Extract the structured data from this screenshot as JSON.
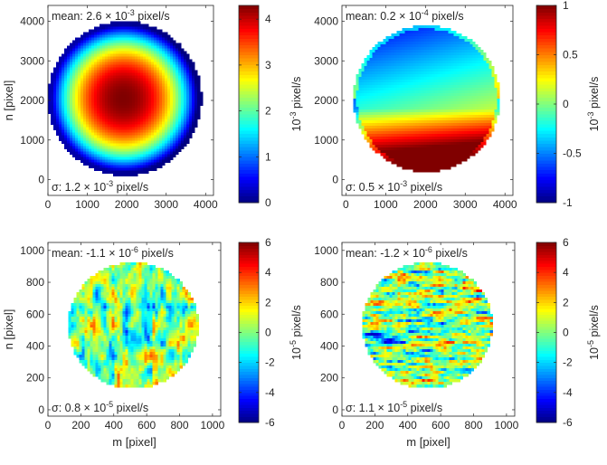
{
  "colormap": "jet",
  "chart_data": [
    {
      "type": "heatmap",
      "title": "",
      "xlabel": "",
      "ylabel": "n [pixel]",
      "xlim": [
        0,
        4200
      ],
      "ylim": [
        -400,
        4400
      ],
      "xticks": [
        "0",
        "1000",
        "2000",
        "3000",
        "4000"
      ],
      "yticks": [
        "0",
        "1000",
        "2000",
        "3000",
        "4000"
      ],
      "field": "radial",
      "circle": {
        "cx": 1950,
        "cy": 2050,
        "r": 1950
      },
      "mean_label": {
        "prefix": "mean: 2.6 × 10",
        "exp": "-3",
        "suffix": " pixel/s"
      },
      "sigma_label": {
        "prefix": "σ: 1.2 × 10",
        "exp": "-3",
        "suffix": " pixel/s"
      },
      "colorbar": {
        "range": [
          0,
          4.3
        ],
        "ticks": [
          "0",
          "1",
          "2",
          "3",
          "4"
        ],
        "label_prefix": "10",
        "label_exp": "-3",
        "label_suffix": " pixel/s"
      }
    },
    {
      "type": "heatmap",
      "title": "",
      "xlabel": "",
      "ylabel": "",
      "xlim": [
        -100,
        4200
      ],
      "ylim": [
        -400,
        4400
      ],
      "xticks": [
        "0",
        "1000",
        "2000",
        "3000",
        "4000"
      ],
      "yticks": [
        "0",
        "1000",
        "2000",
        "3000",
        "4000"
      ],
      "field": "tilt",
      "circle": {
        "cx": 2030,
        "cy": 2050,
        "r": 1850
      },
      "mean_label": {
        "prefix": "mean: 0.2 × 10",
        "exp": "-4",
        "suffix": " pixel/s"
      },
      "sigma_label": {
        "prefix": "σ: 0.5 × 10",
        "exp": "-3",
        "suffix": " pixel/s"
      },
      "colorbar": {
        "range": [
          -1,
          1
        ],
        "ticks": [
          "-1",
          "-0.5",
          "0",
          "0.5",
          "1"
        ],
        "label_prefix": "10",
        "label_exp": "-3",
        "label_suffix": " pixel/s"
      }
    },
    {
      "type": "heatmap",
      "title": "",
      "xlabel": "m [pixel]",
      "ylabel": "n [pixel]",
      "xlim": [
        0,
        1050
      ],
      "ylim": [
        -40,
        1050
      ],
      "xticks": [
        "0",
        "200",
        "400",
        "600",
        "800",
        "1000"
      ],
      "yticks": [
        "0",
        "200",
        "400",
        "600",
        "800",
        "1000"
      ],
      "field": "noise",
      "circle": {
        "cx": 520,
        "cy": 530,
        "r": 395
      },
      "mean_label": {
        "prefix": "mean: -1.1 × 10",
        "exp": "-6",
        "suffix": " pixel/s"
      },
      "sigma_label": {
        "prefix": "σ: 0.8 × 10",
        "exp": "-5",
        "suffix": " pixel/s"
      },
      "colorbar": {
        "range": [
          -6,
          6
        ],
        "ticks": [
          "-6",
          "-4",
          "-2",
          "0",
          "2",
          "4",
          "6"
        ],
        "label_prefix": "10",
        "label_exp": "-5",
        "label_suffix": " pixel/s"
      }
    },
    {
      "type": "heatmap",
      "title": "",
      "xlabel": "m [pixel]",
      "ylabel": "",
      "xlim": [
        0,
        1050
      ],
      "ylim": [
        -40,
        1050
      ],
      "xticks": [
        "0",
        "200",
        "400",
        "600",
        "800",
        "1000"
      ],
      "yticks": [
        "0",
        "200",
        "400",
        "600",
        "800",
        "1000"
      ],
      "field": "streaks",
      "circle": {
        "cx": 520,
        "cy": 530,
        "r": 395
      },
      "mean_label": {
        "prefix": "mean: -1.2 × 10",
        "exp": "-6",
        "suffix": " pixel/s"
      },
      "sigma_label": {
        "prefix": "σ: 1.1 × 10",
        "exp": "-5",
        "suffix": " pixel/s"
      },
      "colorbar": {
        "range": [
          -6,
          6
        ],
        "ticks": [
          "-6",
          "-4",
          "-2",
          "0",
          "2",
          "4",
          "6"
        ],
        "label_prefix": "10",
        "label_exp": "-5",
        "label_suffix": " pixel/s"
      }
    }
  ]
}
